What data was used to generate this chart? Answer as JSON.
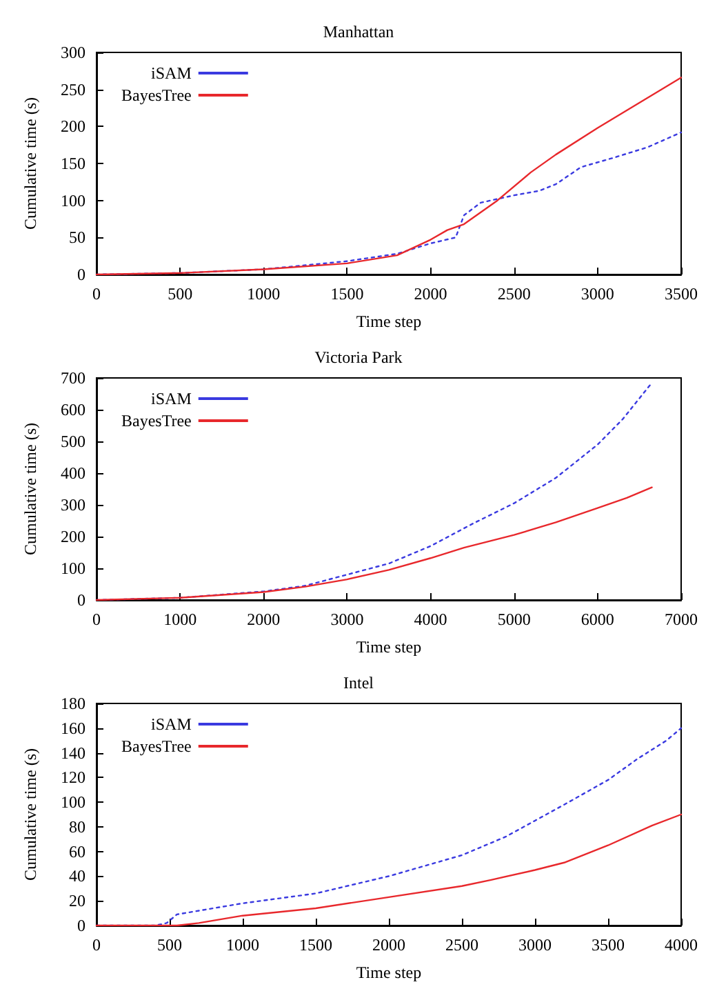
{
  "chart_data": [
    {
      "type": "line",
      "title": "Manhattan",
      "xlabel": "Time step",
      "ylabel": "Cumulative time (s)",
      "xlim": [
        0,
        3500
      ],
      "xticks": [
        0,
        500,
        1000,
        1500,
        2000,
        2500,
        3000,
        3500
      ],
      "ylim": [
        0,
        300
      ],
      "yticks": [
        0,
        50,
        100,
        150,
        200,
        250,
        300
      ],
      "grid": false,
      "legend": "top left",
      "marker": "none",
      "series": [
        {
          "name": "iSAM",
          "color": "#3a3ae0",
          "line_style": "dotted",
          "x": [
            0,
            500,
            1000,
            1500,
            1800,
            2000,
            2150,
            2200,
            2300,
            2500,
            2650,
            2750,
            2900,
            3100,
            3300,
            3500
          ],
          "values": [
            0,
            2,
            7,
            18,
            28,
            42,
            50,
            80,
            97,
            107,
            113,
            122,
            145,
            158,
            172,
            192
          ]
        },
        {
          "name": "BayesTree",
          "color": "#e8282c",
          "line_style": "solid",
          "x": [
            0,
            500,
            1000,
            1500,
            1800,
            2000,
            2100,
            2200,
            2400,
            2600,
            2750,
            3000,
            3250,
            3500
          ],
          "values": [
            0,
            2,
            7,
            15,
            26,
            47,
            60,
            68,
            100,
            138,
            162,
            198,
            232,
            266
          ]
        }
      ]
    },
    {
      "type": "line",
      "title": "Victoria Park",
      "xlabel": "Time step",
      "ylabel": "Cumulative time (s)",
      "xlim": [
        0,
        7000
      ],
      "xticks": [
        0,
        1000,
        2000,
        3000,
        4000,
        5000,
        6000,
        7000
      ],
      "ylim": [
        0,
        700
      ],
      "yticks": [
        0,
        100,
        200,
        300,
        400,
        500,
        600,
        700
      ],
      "grid": false,
      "legend": "top left",
      "marker": "none",
      "series": [
        {
          "name": "iSAM",
          "color": "#3a3ae0",
          "line_style": "dotted",
          "x": [
            0,
            1000,
            2000,
            2500,
            3000,
            3500,
            4000,
            4500,
            5000,
            5500,
            6000,
            6300,
            6650
          ],
          "values": [
            0,
            7,
            27,
            45,
            80,
            115,
            170,
            240,
            305,
            385,
            490,
            570,
            685
          ]
        },
        {
          "name": "BayesTree",
          "color": "#e8282c",
          "line_style": "solid",
          "x": [
            0,
            1000,
            2000,
            2500,
            3000,
            3500,
            4000,
            4400,
            5000,
            5500,
            6000,
            6350,
            6650
          ],
          "values": [
            0,
            7,
            25,
            42,
            65,
            95,
            132,
            165,
            205,
            245,
            290,
            322,
            355
          ]
        }
      ]
    },
    {
      "type": "line",
      "title": "Intel",
      "xlabel": "Time step",
      "ylabel": "Cumulative time (s)",
      "xlim": [
        0,
        4000
      ],
      "xticks": [
        0,
        500,
        1000,
        1500,
        2000,
        2500,
        3000,
        3500,
        4000
      ],
      "ylim": [
        0,
        180
      ],
      "yticks": [
        0,
        20,
        40,
        60,
        80,
        100,
        120,
        140,
        160,
        180
      ],
      "grid": false,
      "legend": "top left",
      "marker": "none",
      "series": [
        {
          "name": "iSAM",
          "color": "#3a3ae0",
          "line_style": "dotted",
          "x": [
            0,
            400,
            480,
            550,
            1000,
            1500,
            2000,
            2500,
            2800,
            3000,
            3200,
            3500,
            3700,
            3900,
            4000
          ],
          "values": [
            0,
            0,
            2,
            9,
            18,
            26,
            40,
            57,
            72,
            85,
            98,
            118,
            135,
            150,
            160
          ]
        },
        {
          "name": "BayesTree",
          "color": "#e8282c",
          "line_style": "solid",
          "x": [
            0,
            550,
            700,
            1000,
            1500,
            2000,
            2500,
            2700,
            3000,
            3200,
            3500,
            3800,
            4000
          ],
          "values": [
            0,
            0,
            2,
            8,
            14,
            23,
            32,
            37,
            45,
            51,
            65,
            81,
            90
          ]
        }
      ]
    }
  ]
}
